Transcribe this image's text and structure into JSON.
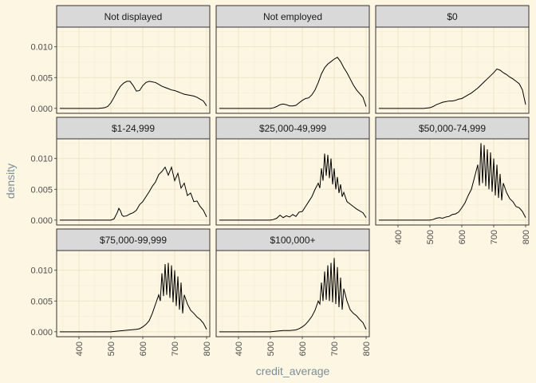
{
  "chart_data": {
    "type": "line",
    "subtype": "faceted-density",
    "xlabel": "credit_average",
    "ylabel": "density",
    "xlim": [
      330,
      810
    ],
    "ylim": [
      -0.0008,
      0.0132
    ],
    "x_ticks": [
      400,
      500,
      600,
      700,
      800
    ],
    "x_tick_labels": [
      "400",
      "500",
      "600",
      "700",
      "800"
    ],
    "y_ticks": [
      0.0,
      0.005,
      0.01
    ],
    "y_tick_labels": [
      "0.000",
      "0.005",
      "0.010"
    ],
    "grid": true,
    "facet_layout": {
      "rows": 3,
      "cols": 3
    },
    "facets": [
      {
        "label": "Not displayed",
        "x": [
          340,
          360,
          380,
          400,
          420,
          440,
          460,
          480,
          490,
          500,
          510,
          520,
          530,
          540,
          550,
          560,
          570,
          580,
          590,
          600,
          610,
          620,
          630,
          640,
          650,
          660,
          670,
          680,
          690,
          700,
          710,
          720,
          730,
          740,
          750,
          760,
          770,
          780,
          790,
          800
        ],
        "y": [
          0,
          0,
          0,
          0,
          0,
          0,
          0,
          0.0001,
          0.0003,
          0.0009,
          0.0018,
          0.0028,
          0.0036,
          0.0041,
          0.0044,
          0.0044,
          0.0037,
          0.0028,
          0.0029,
          0.0037,
          0.0042,
          0.0044,
          0.0043,
          0.0042,
          0.0039,
          0.0036,
          0.0034,
          0.0032,
          0.003,
          0.0029,
          0.0027,
          0.0025,
          0.0023,
          0.0022,
          0.0021,
          0.002,
          0.0018,
          0.0015,
          0.0012,
          0.0004
        ]
      },
      {
        "label": "Not employed",
        "x": [
          340,
          380,
          420,
          460,
          480,
          500,
          510,
          520,
          530,
          540,
          550,
          560,
          570,
          580,
          590,
          600,
          610,
          620,
          630,
          640,
          650,
          660,
          670,
          680,
          690,
          700,
          710,
          720,
          730,
          740,
          750,
          760,
          770,
          780,
          790,
          800
        ],
        "y": [
          0,
          0,
          0,
          0,
          0,
          0,
          0.0001,
          0.0003,
          0.0006,
          0.0007,
          0.0006,
          0.0004,
          0.0004,
          0.0005,
          0.0009,
          0.0013,
          0.0016,
          0.0017,
          0.0022,
          0.003,
          0.0042,
          0.0056,
          0.0066,
          0.0072,
          0.0076,
          0.008,
          0.0083,
          0.0076,
          0.0066,
          0.0058,
          0.0048,
          0.0038,
          0.003,
          0.0024,
          0.0018,
          0.0003
        ]
      },
      {
        "label": "$0",
        "x": [
          340,
          380,
          420,
          460,
          480,
          500,
          510,
          520,
          530,
          540,
          550,
          560,
          570,
          580,
          590,
          600,
          610,
          620,
          630,
          640,
          650,
          660,
          670,
          680,
          690,
          700,
          710,
          720,
          730,
          740,
          750,
          760,
          770,
          780,
          790,
          800
        ],
        "y": [
          0,
          0,
          0,
          0,
          0,
          0.0001,
          0.0003,
          0.0006,
          0.0008,
          0.001,
          0.0011,
          0.0012,
          0.0012,
          0.0013,
          0.0015,
          0.0016,
          0.0019,
          0.0022,
          0.0025,
          0.0029,
          0.0033,
          0.0038,
          0.0043,
          0.0048,
          0.0053,
          0.0058,
          0.0064,
          0.0062,
          0.0058,
          0.0055,
          0.0051,
          0.0048,
          0.0044,
          0.004,
          0.003,
          0.0006
        ]
      },
      {
        "label": "$1-24,999",
        "x": [
          340,
          400,
          460,
          500,
          510,
          520,
          525,
          530,
          535,
          540,
          550,
          560,
          570,
          580,
          590,
          600,
          610,
          620,
          630,
          640,
          650,
          660,
          670,
          680,
          690,
          700,
          710,
          720,
          730,
          740,
          750,
          760,
          770,
          780,
          790,
          800
        ],
        "y": [
          0,
          0,
          0,
          0,
          0.0002,
          0.0012,
          0.0019,
          0.0015,
          0.0008,
          0.0006,
          0.0007,
          0.001,
          0.0012,
          0.0016,
          0.0025,
          0.003,
          0.0038,
          0.0046,
          0.0055,
          0.0062,
          0.0074,
          0.0079,
          0.0086,
          0.0073,
          0.0086,
          0.0064,
          0.0076,
          0.0052,
          0.006,
          0.004,
          0.0044,
          0.003,
          0.0031,
          0.0022,
          0.0016,
          0.0005
        ]
      },
      {
        "label": "$25,000-49,999",
        "x": [
          340,
          400,
          460,
          500,
          510,
          520,
          530,
          540,
          550,
          560,
          570,
          580,
          590,
          600,
          610,
          620,
          630,
          640,
          650,
          655,
          660,
          665,
          670,
          675,
          680,
          685,
          690,
          695,
          700,
          705,
          710,
          715,
          720,
          725,
          730,
          740,
          750,
          760,
          770,
          780,
          790,
          800
        ],
        "y": [
          0,
          0,
          0,
          0,
          0.0001,
          0.0003,
          0.0008,
          0.0004,
          0.0007,
          0.0005,
          0.0009,
          0.0006,
          0.0013,
          0.0014,
          0.0022,
          0.003,
          0.0038,
          0.005,
          0.006,
          0.0052,
          0.0084,
          0.0064,
          0.0108,
          0.0072,
          0.0106,
          0.0068,
          0.01,
          0.0058,
          0.0084,
          0.005,
          0.007,
          0.0044,
          0.0058,
          0.0038,
          0.0045,
          0.003,
          0.0026,
          0.0022,
          0.0018,
          0.0015,
          0.0012,
          0.0004
        ]
      },
      {
        "label": "$50,000-74,999",
        "x": [
          340,
          400,
          460,
          500,
          510,
          520,
          530,
          540,
          550,
          560,
          570,
          580,
          590,
          600,
          610,
          620,
          630,
          640,
          650,
          655,
          660,
          665,
          670,
          675,
          680,
          685,
          690,
          695,
          700,
          705,
          710,
          715,
          720,
          725,
          730,
          740,
          750,
          760,
          770,
          780,
          790,
          800
        ],
        "y": [
          0,
          0,
          0,
          0,
          0.0001,
          0.0003,
          0.0004,
          0.0003,
          0.0005,
          0.0006,
          0.0009,
          0.001,
          0.0013,
          0.002,
          0.0028,
          0.004,
          0.005,
          0.007,
          0.009,
          0.0056,
          0.0125,
          0.006,
          0.0122,
          0.0055,
          0.0115,
          0.005,
          0.011,
          0.0046,
          0.01,
          0.004,
          0.009,
          0.0036,
          0.0075,
          0.0032,
          0.006,
          0.0045,
          0.0035,
          0.003,
          0.0022,
          0.002,
          0.0014,
          0.0004
        ]
      },
      {
        "label": "$75,000-99,999",
        "x": [
          340,
          400,
          460,
          500,
          520,
          540,
          560,
          580,
          590,
          600,
          610,
          620,
          630,
          640,
          650,
          655,
          660,
          665,
          670,
          675,
          680,
          685,
          690,
          695,
          700,
          705,
          710,
          715,
          720,
          725,
          730,
          740,
          750,
          760,
          770,
          780,
          790,
          800
        ],
        "y": [
          0,
          0,
          0,
          0,
          0.0001,
          0.0002,
          0.0003,
          0.0004,
          0.0005,
          0.0008,
          0.0012,
          0.0018,
          0.003,
          0.0045,
          0.006,
          0.005,
          0.0095,
          0.0058,
          0.011,
          0.006,
          0.0112,
          0.0055,
          0.0108,
          0.0048,
          0.01,
          0.0042,
          0.009,
          0.0036,
          0.008,
          0.003,
          0.006,
          0.0045,
          0.0035,
          0.003,
          0.0024,
          0.002,
          0.0014,
          0.0004
        ]
      },
      {
        "label": "$100,000+",
        "x": [
          340,
          400,
          460,
          500,
          520,
          540,
          560,
          580,
          590,
          600,
          610,
          620,
          630,
          640,
          650,
          655,
          660,
          665,
          670,
          675,
          680,
          685,
          690,
          695,
          700,
          705,
          710,
          715,
          720,
          725,
          730,
          740,
          750,
          760,
          770,
          780,
          790,
          800
        ],
        "y": [
          0,
          0,
          0,
          0,
          0.0001,
          0.0002,
          0.0002,
          0.0003,
          0.0005,
          0.0008,
          0.0012,
          0.0018,
          0.0025,
          0.0035,
          0.005,
          0.0045,
          0.008,
          0.005,
          0.0098,
          0.0052,
          0.0108,
          0.005,
          0.0112,
          0.0048,
          0.012,
          0.0045,
          0.0105,
          0.004,
          0.0088,
          0.0036,
          0.007,
          0.005,
          0.0036,
          0.003,
          0.0026,
          0.002,
          0.0015,
          0.0004
        ]
      }
    ]
  }
}
